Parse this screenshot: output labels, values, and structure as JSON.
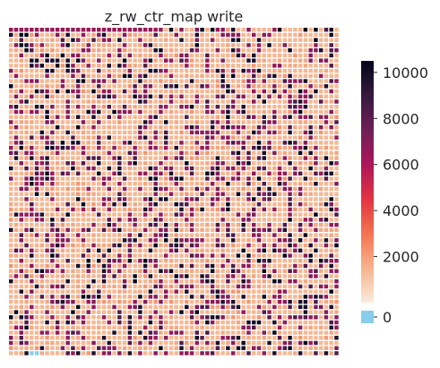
{
  "chart_data": {
    "type": "heatmap",
    "title": "z_rw_ctr_map write",
    "xlabel": "",
    "ylabel": "",
    "rows": 64,
    "cols": 64,
    "value_range": [
      0,
      10500
    ],
    "grid": false,
    "colorbar": {
      "placement": "right",
      "ticks": [
        0,
        2000,
        4000,
        6000,
        8000,
        10000
      ],
      "tick_labels": [
        "0",
        "2000",
        "4000",
        "6000",
        "8000",
        "10000"
      ],
      "zero_color": "#87ceeb",
      "colormap": [
        "#faebdd",
        "#f6b48f",
        "#f37651",
        "#e13342",
        "#ad1759",
        "#701f57",
        "#35193e",
        "#03051a"
      ]
    },
    "cell_levels_palette": [
      1400,
      1800,
      2200,
      6600,
      7000,
      8400,
      9800,
      10400
    ],
    "notable_cells": [
      {
        "row": 63,
        "col": 4,
        "value": 0
      },
      {
        "row": 63,
        "col": 5,
        "value": 0
      }
    ],
    "pattern_notes": {
      "top_row_value": 6600,
      "top_row_span_cols": [
        0,
        29
      ]
    }
  }
}
